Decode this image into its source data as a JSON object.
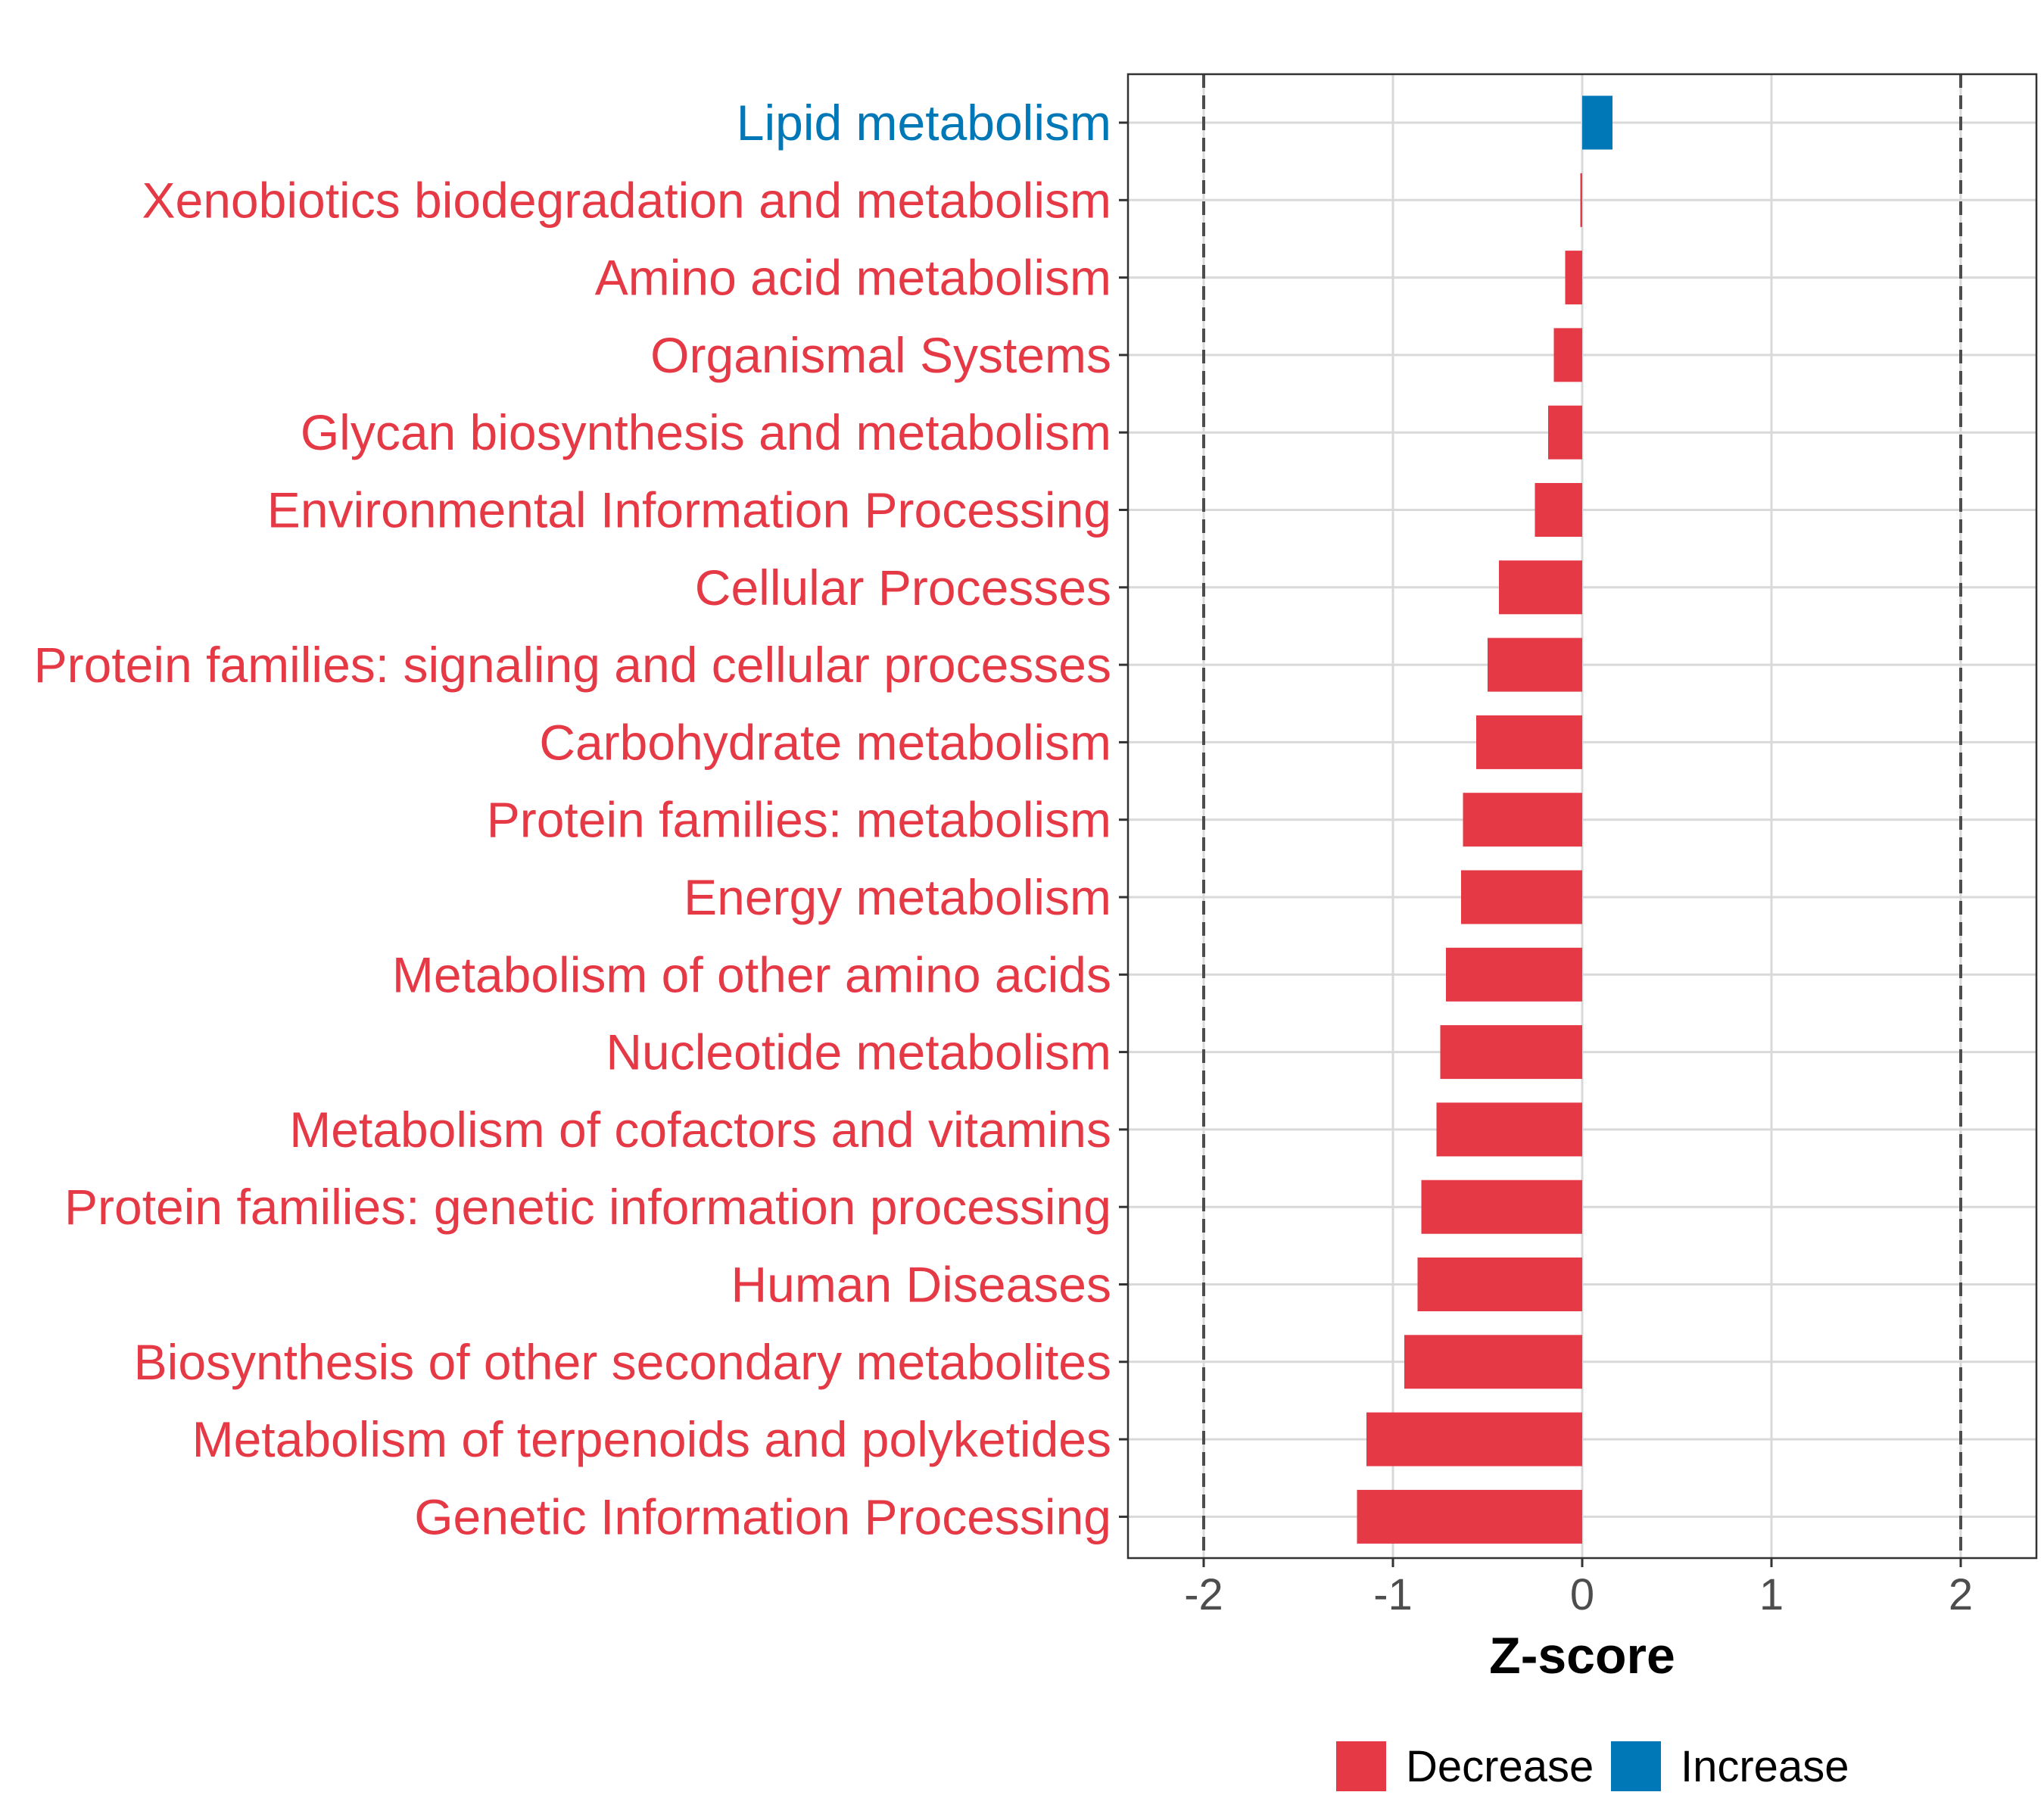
{
  "chart_data": {
    "type": "bar",
    "orientation": "horizontal",
    "categories": [
      "Lipid metabolism",
      "Xenobiotics biodegradation and metabolism",
      "Amino acid metabolism",
      "Organismal Systems",
      "Glycan biosynthesis and metabolism",
      "Environmental Information Processing",
      "Cellular Processes",
      "Protein families: signaling and cellular processes",
      "Carbohydrate metabolism",
      "Protein families: metabolism",
      "Energy metabolism",
      "Metabolism of other amino acids",
      "Nucleotide metabolism",
      "Metabolism of cofactors and vitamins",
      "Protein families: genetic information processing",
      "Human Diseases",
      "Biosynthesis of other secondary metabolites",
      "Metabolism of terpenoids and polyketides",
      "Genetic Information Processing"
    ],
    "values": [
      0.16,
      -0.01,
      -0.09,
      -0.15,
      -0.18,
      -0.25,
      -0.44,
      -0.5,
      -0.56,
      -0.63,
      -0.64,
      -0.72,
      -0.75,
      -0.77,
      -0.85,
      -0.87,
      -0.94,
      -1.14,
      -1.19
    ],
    "groups": [
      "Increase",
      "Decrease",
      "Decrease",
      "Decrease",
      "Decrease",
      "Decrease",
      "Decrease",
      "Decrease",
      "Decrease",
      "Decrease",
      "Decrease",
      "Decrease",
      "Decrease",
      "Decrease",
      "Decrease",
      "Decrease",
      "Decrease",
      "Decrease",
      "Decrease"
    ],
    "xlabel": "Z-score",
    "ylabel": "",
    "xlim": [
      -2.4,
      2.4
    ],
    "xticks": [
      -2,
      -1,
      0,
      1,
      2
    ],
    "xtick_labels": [
      "-2",
      "-1",
      "0",
      "1",
      "2"
    ],
    "reference_lines": [
      -2,
      2
    ],
    "grid": true,
    "legend": {
      "position": "bottom",
      "entries": [
        {
          "label": "Decrease",
          "color": "#E63946"
        },
        {
          "label": "Increase",
          "color": "#0077B6"
        }
      ]
    }
  },
  "colors": {
    "Decrease": "#E63946",
    "Increase": "#0077B6",
    "grid": "#d9d9d9",
    "reference_line": "#4d4d4d",
    "panel_border": "#333333"
  }
}
